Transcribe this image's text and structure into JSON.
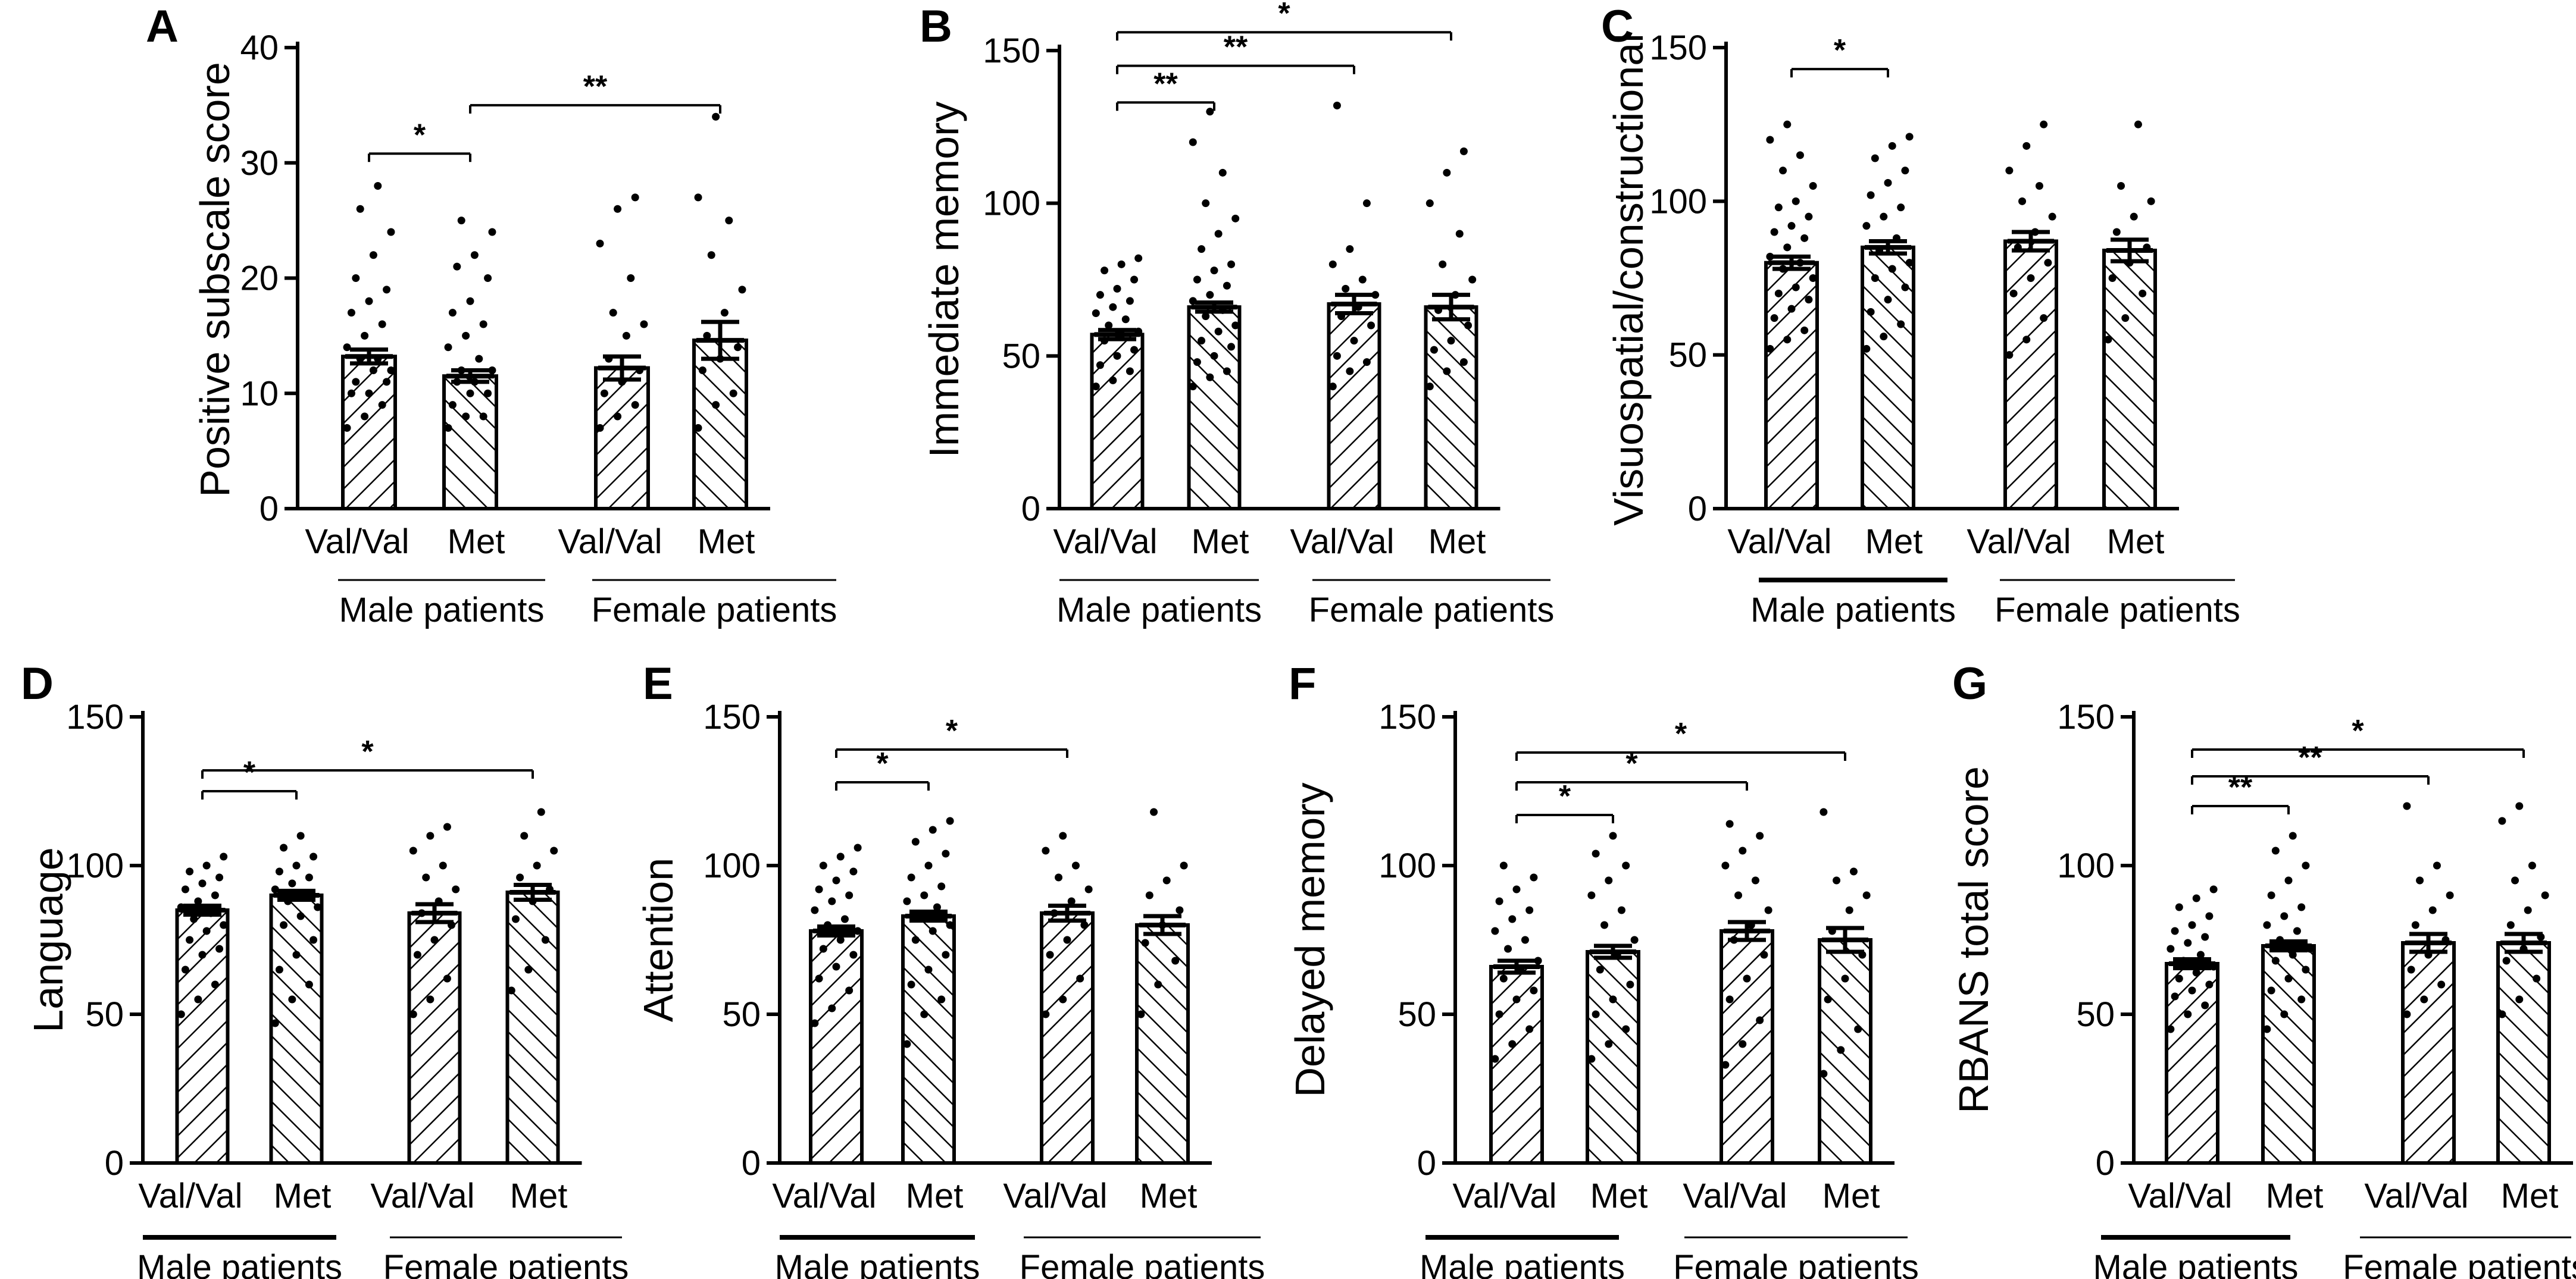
{
  "figure": {
    "background": "#ffffff",
    "ink": "#000000"
  },
  "chart_data": [
    {
      "panel": "A",
      "type": "bar",
      "ylabel": "Positive subscale score",
      "ylim": [
        0,
        40
      ],
      "yticks": [
        0,
        10,
        20,
        30,
        40
      ],
      "categories": [
        "Val/Val",
        "Met",
        "Val/Val",
        "Met"
      ],
      "groups": [
        {
          "label": "Male patients",
          "bold": false
        },
        {
          "label": "Female patients",
          "bold": false
        }
      ],
      "values": [
        13.2,
        11.5,
        12.2,
        14.6
      ],
      "sem": [
        0.6,
        0.5,
        1.0,
        1.6
      ],
      "points": [
        [
          7,
          8,
          9,
          10,
          10,
          11,
          11,
          12,
          12,
          13,
          13,
          14,
          15,
          16,
          17,
          18,
          19,
          20,
          22,
          24,
          26,
          28
        ],
        [
          7,
          8,
          8,
          9,
          10,
          10,
          11,
          11,
          12,
          12,
          13,
          14,
          15,
          16,
          17,
          18,
          20,
          21,
          22,
          24,
          25
        ],
        [
          7,
          8,
          9,
          10,
          11,
          12,
          13,
          15,
          16,
          17,
          20,
          23,
          26,
          27
        ],
        [
          7,
          9,
          10,
          12,
          13,
          14,
          15,
          17,
          19,
          22,
          25,
          27,
          34
        ]
      ],
      "comparisons": [
        {
          "from": 0,
          "to": 1,
          "level": 30.8,
          "stars": "*"
        },
        {
          "from": 1,
          "to": 3,
          "level": 35.0,
          "stars": "**"
        }
      ]
    },
    {
      "panel": "B",
      "type": "bar",
      "ylabel": "Immediate memory",
      "ylim": [
        0,
        150
      ],
      "yticks": [
        0,
        50,
        100,
        150
      ],
      "categories": [
        "Val/Val",
        "Met",
        "Val/Val",
        "Met"
      ],
      "groups": [
        {
          "label": "Male patients",
          "bold": false
        },
        {
          "label": "Female patients",
          "bold": false
        }
      ],
      "values": [
        57,
        66,
        67,
        66
      ],
      "sem": [
        1.5,
        1.5,
        3.0,
        4.0
      ],
      "points": [
        [
          40,
          42,
          45,
          47,
          50,
          52,
          55,
          57,
          58,
          60,
          62,
          64,
          66,
          68,
          70,
          72,
          75,
          78,
          80,
          82
        ],
        [
          40,
          43,
          45,
          48,
          50,
          53,
          55,
          58,
          60,
          63,
          65,
          68,
          70,
          73,
          75,
          78,
          80,
          85,
          90,
          95,
          100,
          110,
          120,
          130
        ],
        [
          40,
          45,
          48,
          50,
          55,
          60,
          63,
          66,
          70,
          72,
          75,
          80,
          85,
          100,
          132
        ],
        [
          40,
          45,
          48,
          52,
          55,
          60,
          65,
          70,
          75,
          80,
          90,
          100,
          110,
          117
        ]
      ],
      "comparisons": [
        {
          "from": 0,
          "to": 1,
          "level": 133,
          "stars": "**"
        },
        {
          "from": 0,
          "to": 2,
          "level": 145,
          "stars": "**"
        },
        {
          "from": 0,
          "to": 3,
          "level": 156,
          "stars": "*"
        }
      ]
    },
    {
      "panel": "C",
      "type": "bar",
      "ylabel": "Visuospatial/constructional",
      "ylim": [
        0,
        150
      ],
      "yticks": [
        0,
        50,
        100,
        150
      ],
      "categories": [
        "Val/Val",
        "Met",
        "Val/Val",
        "Met"
      ],
      "groups": [
        {
          "label": "Male patients",
          "bold": true
        },
        {
          "label": "Female patients",
          "bold": false
        }
      ],
      "values": [
        80,
        85,
        87,
        84
      ],
      "sem": [
        2.0,
        2.0,
        3.0,
        3.5
      ],
      "points": [
        [
          52,
          55,
          58,
          62,
          65,
          68,
          70,
          72,
          75,
          78,
          80,
          82,
          85,
          88,
          90,
          92,
          95,
          98,
          100,
          105,
          110,
          115,
          120,
          125
        ],
        [
          52,
          56,
          60,
          64,
          68,
          72,
          75,
          78,
          80,
          84,
          88,
          92,
          95,
          98,
          102,
          106,
          110,
          114,
          118,
          121
        ],
        [
          50,
          55,
          62,
          70,
          75,
          80,
          85,
          90,
          95,
          100,
          105,
          110,
          118,
          125
        ],
        [
          55,
          62,
          70,
          75,
          80,
          85,
          90,
          95,
          100,
          105,
          125
        ]
      ],
      "comparisons": [
        {
          "from": 0,
          "to": 1,
          "level": 143,
          "stars": "*"
        }
      ]
    },
    {
      "panel": "D",
      "type": "bar",
      "ylabel": "Language",
      "ylim": [
        0,
        150
      ],
      "yticks": [
        0,
        50,
        100,
        150
      ],
      "categories": [
        "Val/Val",
        "Met",
        "Val/Val",
        "Met"
      ],
      "groups": [
        {
          "label": "Male patients",
          "bold": true
        },
        {
          "label": "Female patients",
          "bold": false
        }
      ],
      "values": [
        85,
        90,
        84,
        91
      ],
      "sem": [
        1.5,
        1.5,
        3.0,
        2.5
      ],
      "points": [
        [
          50,
          55,
          60,
          65,
          70,
          72,
          75,
          78,
          80,
          82,
          84,
          86,
          88,
          90,
          92,
          94,
          96,
          98,
          100,
          103
        ],
        [
          47,
          55,
          60,
          65,
          70,
          75,
          80,
          83,
          86,
          88,
          90,
          92,
          94,
          96,
          98,
          100,
          103,
          106,
          110
        ],
        [
          50,
          55,
          62,
          70,
          75,
          80,
          84,
          88,
          92,
          96,
          100,
          105,
          110,
          113
        ],
        [
          58,
          65,
          75,
          82,
          88,
          92,
          96,
          100,
          105,
          110,
          118
        ]
      ],
      "comparisons": [
        {
          "from": 0,
          "to": 1,
          "level": 125,
          "stars": "*"
        },
        {
          "from": 0,
          "to": 3,
          "level": 132,
          "stars": "*"
        }
      ]
    },
    {
      "panel": "E",
      "type": "bar",
      "ylabel": "Attention",
      "ylim": [
        0,
        150
      ],
      "yticks": [
        0,
        50,
        100,
        150
      ],
      "categories": [
        "Val/Val",
        "Met",
        "Val/Val",
        "Met"
      ],
      "groups": [
        {
          "label": "Male patients",
          "bold": true
        },
        {
          "label": "Female patients",
          "bold": false
        }
      ],
      "values": [
        78,
        83,
        84,
        80
      ],
      "sem": [
        1.5,
        1.5,
        2.5,
        3.0
      ],
      "points": [
        [
          47,
          52,
          58,
          62,
          66,
          70,
          72,
          75,
          78,
          80,
          82,
          85,
          88,
          90,
          92,
          95,
          98,
          100,
          103,
          106
        ],
        [
          40,
          50,
          55,
          60,
          65,
          70,
          75,
          78,
          80,
          83,
          86,
          88,
          90,
          93,
          96,
          100,
          104,
          108,
          112,
          115
        ],
        [
          50,
          55,
          62,
          70,
          75,
          80,
          84,
          88,
          92,
          96,
          100,
          105,
          110
        ],
        [
          50,
          60,
          68,
          74,
          80,
          85,
          90,
          95,
          100,
          118
        ]
      ],
      "comparisons": [
        {
          "from": 0,
          "to": 1,
          "level": 128,
          "stars": "*"
        },
        {
          "from": 0,
          "to": 2,
          "level": 139,
          "stars": "*"
        }
      ]
    },
    {
      "panel": "F",
      "type": "bar",
      "ylabel": "Delayed memory",
      "ylim": [
        0,
        150
      ],
      "yticks": [
        0,
        50,
        100,
        150
      ],
      "categories": [
        "Val/Val",
        "Met",
        "Val/Val",
        "Met"
      ],
      "groups": [
        {
          "label": "Male patients",
          "bold": true
        },
        {
          "label": "Female patients",
          "bold": false
        }
      ],
      "values": [
        66,
        71,
        78,
        75
      ],
      "sem": [
        2.0,
        2.0,
        3.0,
        4.0
      ],
      "points": [
        [
          35,
          40,
          45,
          50,
          55,
          58,
          62,
          65,
          68,
          72,
          75,
          78,
          82,
          85,
          88,
          92,
          96,
          100
        ],
        [
          35,
          40,
          45,
          50,
          55,
          60,
          65,
          70,
          75,
          80,
          85,
          90,
          95,
          100,
          104,
          110
        ],
        [
          33,
          40,
          48,
          55,
          62,
          70,
          75,
          80,
          85,
          90,
          95,
          100,
          105,
          110,
          114
        ],
        [
          30,
          38,
          45,
          55,
          62,
          70,
          78,
          85,
          90,
          95,
          98,
          118
        ]
      ],
      "comparisons": [
        {
          "from": 0,
          "to": 1,
          "level": 117,
          "stars": "*"
        },
        {
          "from": 0,
          "to": 2,
          "level": 128,
          "stars": "*"
        },
        {
          "from": 0,
          "to": 3,
          "level": 138,
          "stars": "*"
        }
      ]
    },
    {
      "panel": "G",
      "type": "bar",
      "ylabel": "RBANS total score",
      "ylim": [
        0,
        150
      ],
      "yticks": [
        0,
        50,
        100,
        150
      ],
      "categories": [
        "Val/Val",
        "Met",
        "Val/Val",
        "Met"
      ],
      "groups": [
        {
          "label": "Male patients",
          "bold": true
        },
        {
          "label": "Female patients",
          "bold": false
        }
      ],
      "values": [
        67,
        73,
        74,
        74
      ],
      "sem": [
        1.5,
        1.5,
        3.0,
        3.0
      ],
      "points": [
        [
          45,
          50,
          53,
          56,
          58,
          60,
          62,
          64,
          66,
          68,
          70,
          72,
          74,
          76,
          78,
          80,
          83,
          86,
          89,
          92
        ],
        [
          45,
          50,
          55,
          58,
          62,
          65,
          68,
          70,
          72,
          75,
          78,
          80,
          83,
          86,
          90,
          95,
          100,
          105,
          110
        ],
        [
          50,
          55,
          60,
          65,
          70,
          75,
          80,
          85,
          90,
          95,
          100,
          120
        ],
        [
          50,
          55,
          62,
          68,
          72,
          76,
          80,
          85,
          90,
          95,
          100,
          115,
          120
        ]
      ],
      "comparisons": [
        {
          "from": 0,
          "to": 1,
          "level": 120,
          "stars": "**"
        },
        {
          "from": 0,
          "to": 2,
          "level": 130,
          "stars": "**"
        },
        {
          "from": 0,
          "to": 3,
          "level": 139,
          "stars": "*"
        }
      ]
    }
  ]
}
